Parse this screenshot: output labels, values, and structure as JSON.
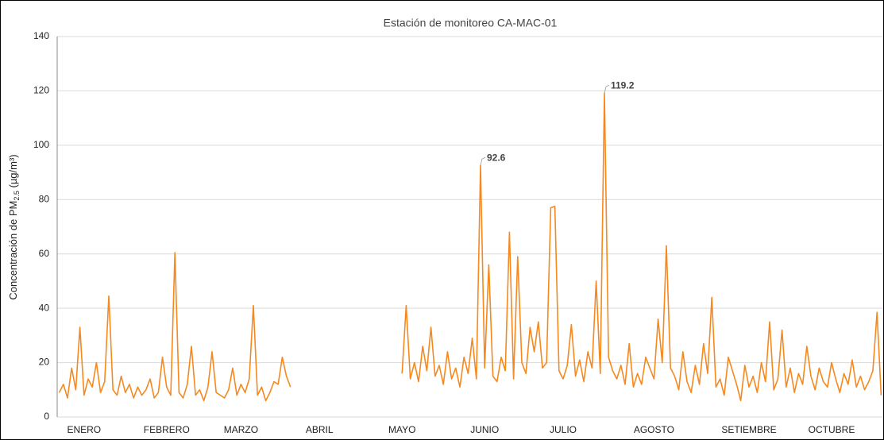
{
  "chart_data": {
    "type": "line",
    "title": "Estación de monitoreo CA-MAC-01",
    "y_label": {
      "text": "Concentración de PM",
      "sub": "2.5",
      "rest": " (µg/m³)"
    },
    "ylim": [
      0,
      140
    ],
    "yticks": [
      0,
      20,
      40,
      60,
      80,
      100,
      120,
      140
    ],
    "grid": true,
    "color": "#f5891f",
    "categories": [
      null,
      null,
      null,
      null,
      null,
      null,
      "ENERO",
      null,
      null,
      null,
      null,
      null,
      null,
      null,
      null,
      null,
      null,
      null,
      null,
      null,
      null,
      null,
      null,
      null,
      null,
      null,
      "FEBRERO",
      null,
      null,
      null,
      null,
      null,
      null,
      null,
      null,
      null,
      null,
      null,
      null,
      null,
      null,
      null,
      null,
      null,
      "MARZO",
      null,
      null,
      null,
      null,
      null,
      null,
      null,
      null,
      null,
      null,
      null,
      null,
      null,
      null,
      null,
      null,
      null,
      null,
      "ABRIL",
      null,
      null,
      null,
      null,
      null,
      null,
      null,
      null,
      null,
      null,
      null,
      null,
      null,
      null,
      null,
      null,
      null,
      null,
      null,
      "MAYO",
      null,
      null,
      null,
      null,
      null,
      null,
      null,
      null,
      null,
      null,
      null,
      null,
      null,
      null,
      null,
      null,
      null,
      null,
      null,
      "JUNIO",
      null,
      null,
      null,
      null,
      null,
      null,
      null,
      null,
      null,
      null,
      null,
      null,
      null,
      null,
      null,
      null,
      null,
      null,
      "JULIO",
      null,
      null,
      null,
      null,
      null,
      null,
      null,
      null,
      null,
      null,
      null,
      null,
      null,
      null,
      null,
      null,
      null,
      null,
      null,
      null,
      null,
      "AGOSTO",
      null,
      null,
      null,
      null,
      null,
      null,
      null,
      null,
      null,
      null,
      null,
      null,
      null,
      null,
      null,
      null,
      null,
      null,
      null,
      null,
      null,
      null,
      "SETIEMBRE",
      null,
      null,
      null,
      null,
      null,
      null,
      null,
      null,
      null,
      null,
      null,
      null,
      null,
      null,
      null,
      null,
      null,
      null,
      null,
      "OCTUBRE",
      null,
      null,
      null,
      null,
      null,
      null,
      null,
      null,
      null,
      null,
      null,
      null
    ],
    "values": [
      9,
      12,
      7,
      18,
      10,
      33,
      8,
      14,
      11,
      20,
      9,
      13,
      44.5,
      10,
      8,
      15,
      9,
      12,
      7,
      11,
      8,
      10,
      14,
      7,
      9,
      22,
      11,
      8,
      60.5,
      9,
      7,
      12,
      26,
      8,
      10,
      6,
      11,
      24,
      9,
      8,
      7,
      10,
      18,
      8,
      12,
      9,
      14,
      41,
      8,
      11,
      6,
      9,
      13,
      12,
      22,
      15,
      11,
      null,
      null,
      null,
      null,
      null,
      null,
      null,
      null,
      null,
      null,
      null,
      null,
      null,
      null,
      null,
      null,
      null,
      null,
      null,
      null,
      null,
      null,
      null,
      null,
      null,
      null,
      16,
      41,
      14,
      20,
      13,
      26,
      17,
      33,
      15,
      19,
      12,
      24,
      14,
      18,
      11,
      22,
      16,
      29,
      14,
      92.6,
      18,
      56,
      15,
      13,
      22,
      17,
      68,
      14,
      59,
      20,
      16,
      33,
      24,
      35,
      18,
      20,
      77,
      77.5,
      17,
      14,
      19,
      34,
      15,
      21,
      13,
      24,
      18,
      50,
      16,
      119.2,
      22,
      17,
      14,
      19,
      12,
      27,
      11,
      16,
      12,
      22,
      18,
      14,
      36,
      20,
      63,
      18,
      15,
      10,
      24,
      13,
      9,
      19,
      12,
      27,
      16,
      44,
      11,
      14,
      8,
      22,
      17,
      12,
      6,
      19,
      11,
      15,
      9,
      20,
      13,
      35,
      10,
      14,
      32,
      11,
      18,
      9,
      16,
      12,
      26,
      15,
      10,
      18,
      13,
      11,
      20,
      14,
      9,
      16,
      12,
      21,
      11,
      15,
      10,
      13,
      17,
      38.5,
      8
    ],
    "value_labels": [
      null,
      null,
      null,
      null,
      null,
      null,
      null,
      null,
      null,
      null,
      null,
      null,
      null,
      null,
      null,
      null,
      null,
      null,
      null,
      null,
      null,
      null,
      null,
      null,
      null,
      null,
      null,
      null,
      null,
      null,
      null,
      null,
      null,
      null,
      null,
      null,
      null,
      null,
      null,
      null,
      null,
      null,
      null,
      null,
      null,
      null,
      null,
      null,
      null,
      null,
      null,
      null,
      null,
      null,
      null,
      null,
      null,
      null,
      null,
      null,
      null,
      null,
      null,
      null,
      null,
      null,
      null,
      null,
      null,
      null,
      null,
      null,
      null,
      null,
      null,
      null,
      null,
      null,
      null,
      null,
      null,
      null,
      null,
      null,
      null,
      null,
      null,
      null,
      null,
      null,
      null,
      null,
      null,
      null,
      null,
      null,
      null,
      null,
      null,
      null,
      null,
      null,
      "92.6",
      null,
      null,
      null,
      null,
      null,
      null,
      null,
      null,
      null,
      null,
      null,
      null,
      null,
      null,
      null,
      null,
      null,
      null,
      null,
      null,
      null,
      null,
      null,
      null,
      null,
      null,
      null,
      null,
      null,
      "119.2",
      null,
      null,
      null,
      null,
      null,
      null,
      null,
      null,
      null,
      null,
      null,
      null,
      null,
      null,
      null,
      null,
      null,
      null,
      null,
      null,
      null,
      null,
      null,
      null,
      null,
      null,
      null,
      null,
      null,
      null,
      null,
      null,
      null,
      null,
      null,
      null,
      null,
      null,
      null,
      null,
      null,
      null,
      null,
      null,
      null,
      null,
      null,
      null,
      null,
      null,
      null,
      null,
      null,
      null,
      null,
      null,
      null,
      null,
      null,
      null,
      null,
      null,
      null,
      null,
      null,
      null,
      null
    ]
  }
}
